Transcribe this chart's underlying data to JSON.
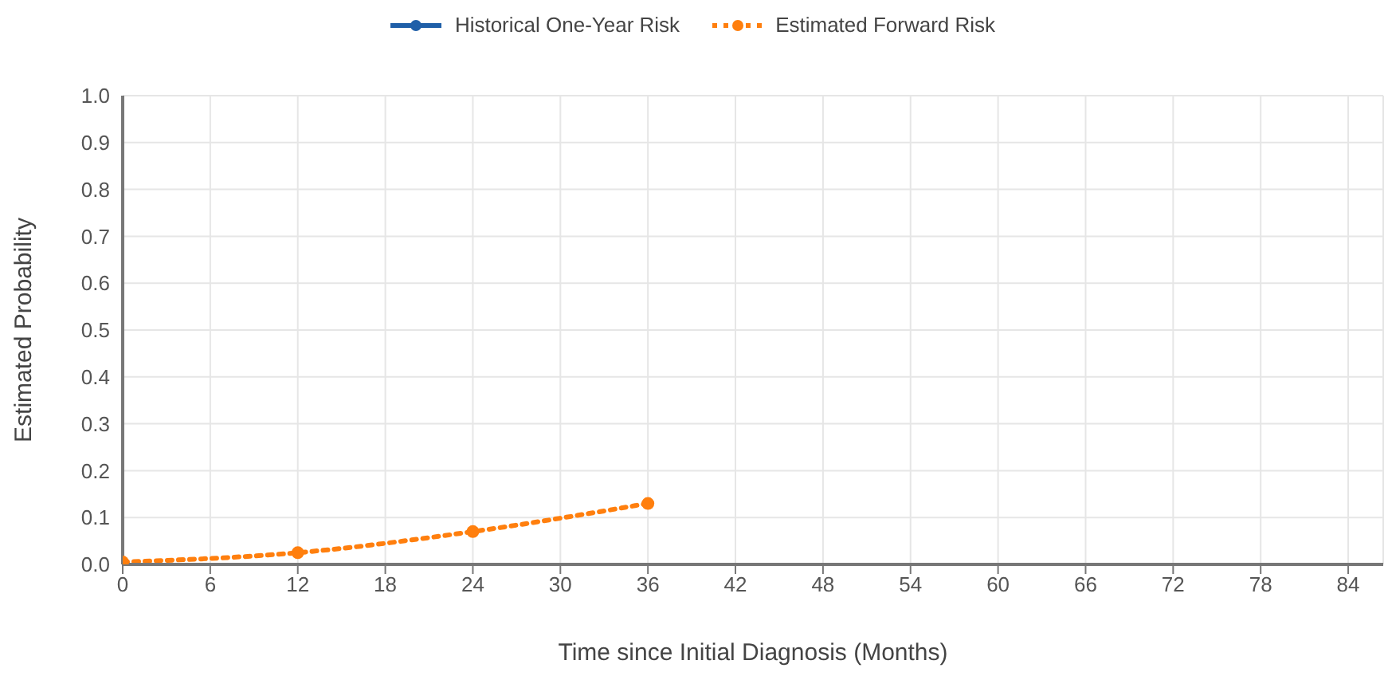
{
  "chart_data": {
    "type": "line",
    "xlabel": "Time since Initial Diagnosis (Months)",
    "ylabel": "Estimated Probability",
    "x": [
      0,
      12,
      24,
      36
    ],
    "series": [
      {
        "name": "Historical One-Year Risk",
        "color": "#1f5fa8",
        "line_style": "solid",
        "values": [
          null,
          null,
          null,
          null
        ]
      },
      {
        "name": "Estimated Forward Risk",
        "color": "#ff7f0e",
        "line_style": "dotted",
        "values": [
          0.005,
          0.025,
          0.07,
          0.13
        ]
      }
    ],
    "xlim": [
      0,
      86.4
    ],
    "xticks": [
      0,
      6,
      12,
      18,
      24,
      30,
      36,
      42,
      48,
      54,
      60,
      66,
      72,
      78,
      84
    ],
    "ylim": [
      0,
      1
    ],
    "yticks": [
      {
        "value": 0,
        "label": "0.0"
      },
      0.1,
      0.2,
      0.3,
      0.4,
      0.5,
      0.6,
      0.7,
      0.8,
      0.9,
      {
        "value": 1,
        "label": "1.0"
      }
    ],
    "grid": true,
    "legend": "top",
    "marker": "circle"
  }
}
